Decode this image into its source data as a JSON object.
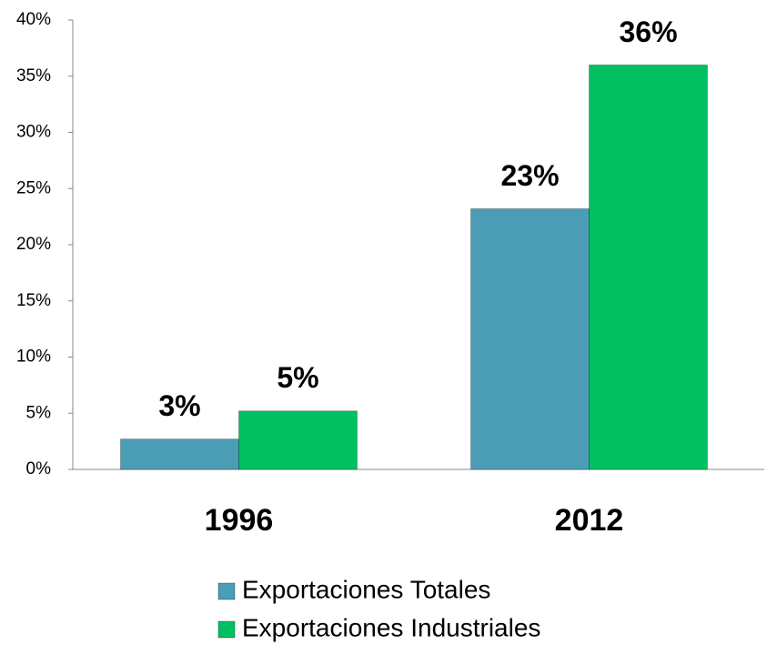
{
  "chart_data": {
    "type": "bar",
    "categories": [
      "1996",
      "2012"
    ],
    "series": [
      {
        "name": "Exportaciones Totales",
        "color": "#4a9db5",
        "values": [
          2.7,
          23.2
        ],
        "value_labels": [
          "3%",
          "23%"
        ]
      },
      {
        "name": "Exportaciones Industriales",
        "color": "#00c060",
        "values": [
          5.2,
          36
        ],
        "value_labels": [
          "5%",
          "36%"
        ]
      }
    ],
    "ylim": [
      0,
      40
    ],
    "yticks": [
      {
        "value": 0,
        "label": "0%"
      },
      {
        "value": 5,
        "label": "5%"
      },
      {
        "value": 10,
        "label": "10%"
      },
      {
        "value": 15,
        "label": "15%"
      },
      {
        "value": 20,
        "label": "20%"
      },
      {
        "value": 25,
        "label": "25%"
      },
      {
        "value": 30,
        "label": "30%"
      },
      {
        "value": 35,
        "label": "35%"
      },
      {
        "value": 40,
        "label": "40%"
      }
    ],
    "grid": false,
    "legend": "bottom"
  }
}
